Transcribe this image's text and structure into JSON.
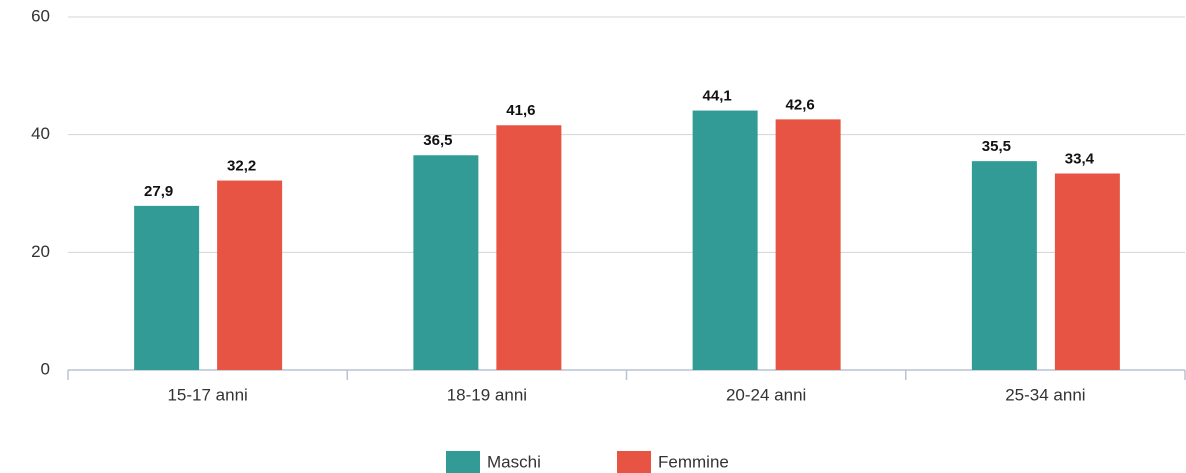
{
  "chart_data": {
    "type": "bar",
    "categories": [
      "15-17 anni",
      "18-19 anni",
      "20-24 anni",
      "25-34 anni"
    ],
    "series": [
      {
        "name": "Maschi",
        "color": "#339b96",
        "values": [
          27.9,
          36.5,
          44.1,
          35.5
        ],
        "value_labels": [
          "27,9",
          "36,5",
          "44,1",
          "35,5"
        ]
      },
      {
        "name": "Femmine",
        "color": "#e85443",
        "values": [
          32.2,
          41.6,
          42.6,
          33.4
        ],
        "value_labels": [
          "32,2",
          "41,6",
          "42,6",
          "33,4"
        ]
      }
    ],
    "ylim": [
      0,
      60
    ],
    "yticks": [
      0,
      20,
      40,
      60
    ],
    "grid": true,
    "legend": "bottom"
  }
}
